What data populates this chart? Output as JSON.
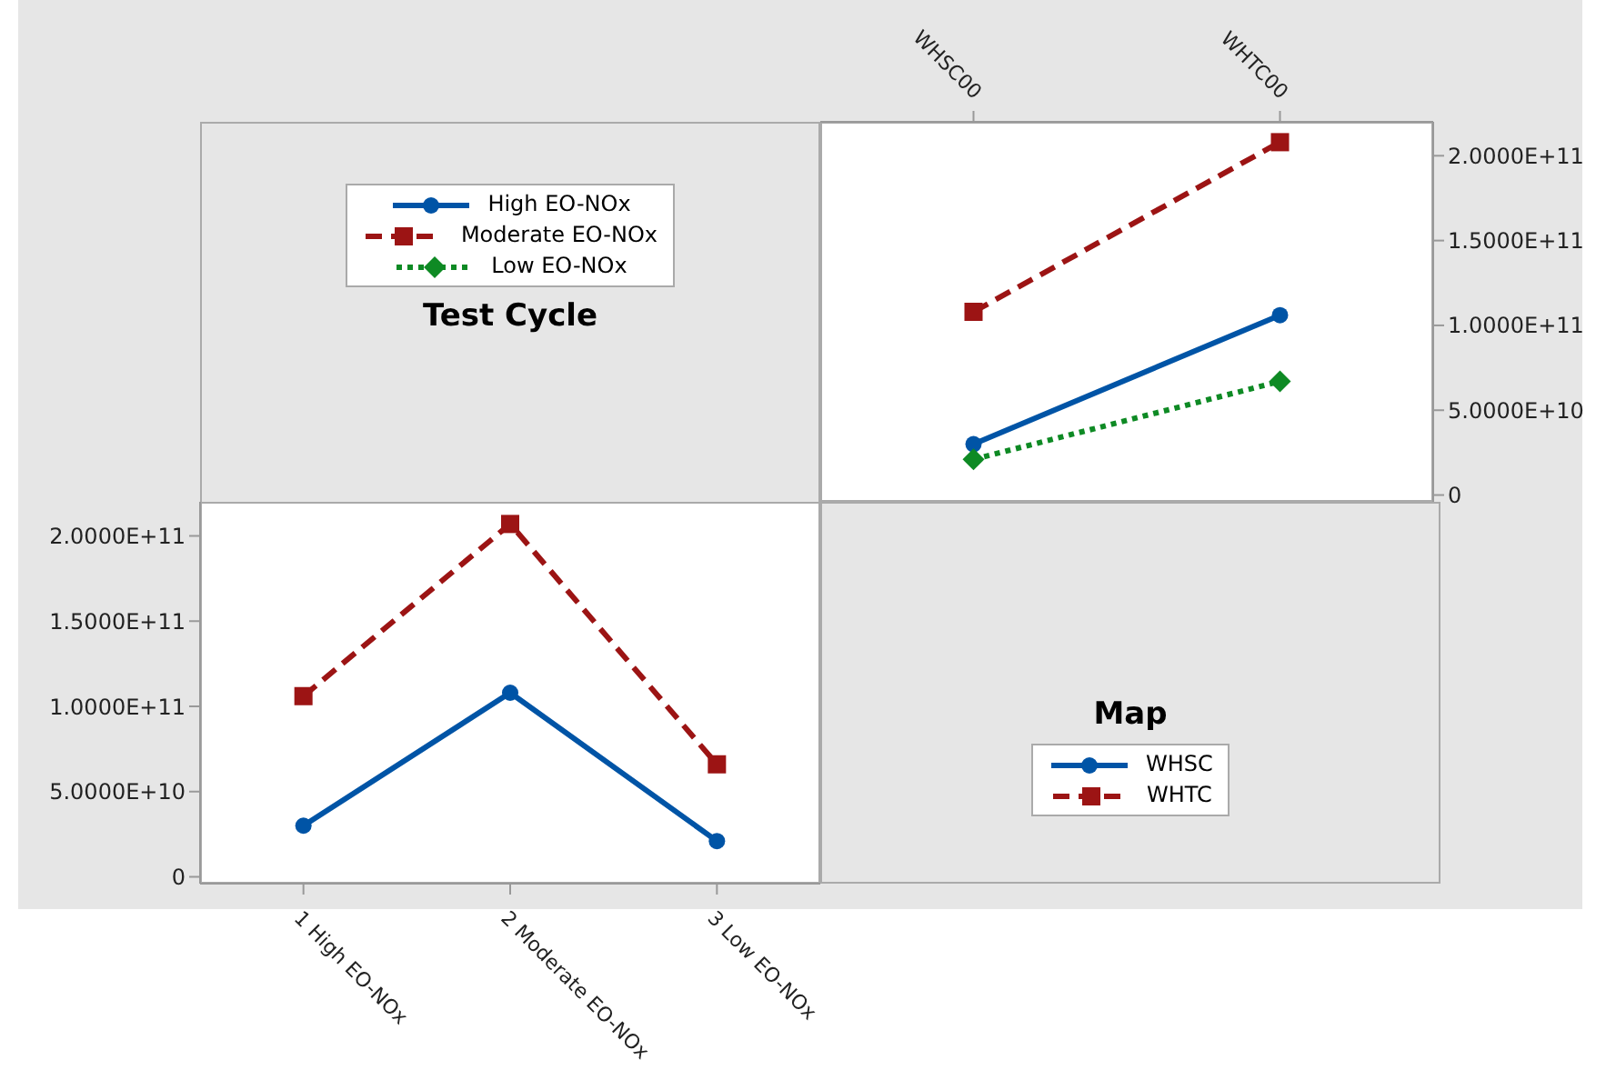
{
  "chart_data": [
    {
      "type": "line",
      "legend_title": "Test Cycle",
      "categories": [
        "WHSC00",
        "WHTC00"
      ],
      "series": [
        {
          "name": "High EO-NOx",
          "color": "#0054a6",
          "values": [
            30000000000,
            106000000000
          ],
          "marker": "circle",
          "line_style": "solid"
        },
        {
          "name": "Moderate EO-NOx",
          "color": "#9c1414",
          "values": [
            108000000000,
            208000000000
          ],
          "marker": "square",
          "line_style": "dashed"
        },
        {
          "name": "Low EO-NOx",
          "color": "#0e8a24",
          "values": [
            21000000000,
            67000000000
          ],
          "marker": "diamond",
          "line_style": "dotted"
        }
      ],
      "ylim": [
        -4000000000,
        220000000000
      ],
      "yticks": [
        0,
        {
          "value": 50000000000,
          "label": "5.0000E+10"
        },
        {
          "value": 100000000000,
          "label": "1.0000E+11"
        },
        {
          "value": 150000000000,
          "label": "1.5000E+11"
        },
        {
          "value": 200000000000,
          "label": "2.0000E+11"
        }
      ],
      "grid": false,
      "legend": "left"
    },
    {
      "type": "line",
      "legend_title": "Map",
      "categories": [
        "1 High EO-NOx",
        "2 Moderate EO-NOx",
        "3 Low EO-NOx"
      ],
      "series": [
        {
          "name": "WHSC",
          "color": "#0054a6",
          "values": [
            30000000000,
            108000000000,
            21000000000
          ],
          "marker": "circle",
          "line_style": "solid"
        },
        {
          "name": "WHTC",
          "color": "#9c1414",
          "values": [
            106000000000,
            207000000000,
            66000000000
          ],
          "marker": "square",
          "line_style": "dashed"
        }
      ],
      "ylim": [
        -4000000000,
        220000000000
      ],
      "yticks": [
        0,
        {
          "value": 50000000000,
          "label": "5.0000E+10"
        },
        {
          "value": 100000000000,
          "label": "1.0000E+11"
        },
        {
          "value": 150000000000,
          "label": "1.5000E+11"
        },
        {
          "value": 200000000000,
          "label": "2.0000E+11"
        }
      ],
      "grid": false,
      "legend": "right"
    }
  ]
}
